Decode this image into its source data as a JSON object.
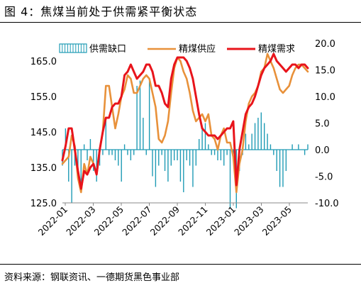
{
  "title": "图 4：焦煤当前处于供需紧平衡状态",
  "source": "资料来源：钢联资讯、一德期货黑色事业部",
  "chart_data": {
    "type": "line+bar",
    "x_labels": [
      "2022-01",
      "2022-03",
      "2022-05",
      "2022-07",
      "2022-09",
      "2022-11",
      "2023-01",
      "2023-03",
      "2023-05"
    ],
    "y_left": {
      "min": 125,
      "max": 170,
      "ticks": [
        125.0,
        135.0,
        145.0,
        155.0,
        165.0
      ]
    },
    "y_right": {
      "min": -10,
      "max": 20,
      "ticks": [
        -10.0,
        -5.0,
        0.0,
        5.0,
        10.0,
        15.0,
        20.0
      ]
    },
    "legend_position": "top",
    "n_points": 80,
    "series": [
      {
        "name": "供需缺口",
        "type": "bar",
        "axis": "right",
        "color": "#1f9bb5",
        "values": [
          -3,
          4,
          -6,
          -10,
          -3,
          -5,
          -8,
          1,
          -2,
          2,
          -4,
          -6,
          -3,
          -1,
          6,
          -1,
          -1,
          -2,
          -3,
          -6,
          1,
          -1,
          -2,
          -1,
          12,
          13,
          6,
          -1,
          13,
          -5,
          -7,
          -3,
          -1,
          -4,
          -6,
          -3,
          -2,
          -2,
          -6,
          -8,
          -2,
          -3,
          -7,
          -3,
          2,
          4,
          5,
          1,
          -1,
          -1,
          -2,
          -2,
          -3,
          -1,
          -11,
          -1,
          -11,
          -4,
          -1,
          3,
          1,
          3,
          5,
          6,
          7,
          5,
          3,
          1,
          -1,
          -4,
          -7,
          -7,
          -4,
          0,
          1,
          0,
          1,
          0,
          -1,
          1
        ]
      },
      {
        "name": "精煤供应",
        "type": "line",
        "axis": "left",
        "color": "#e8913a",
        "values": [
          136,
          137,
          138,
          144,
          141,
          132,
          128,
          136,
          133,
          138,
          136,
          133,
          140,
          145,
          158,
          158,
          152,
          146,
          150,
          155,
          157,
          161,
          160,
          156,
          156,
          158,
          160,
          161,
          160,
          156,
          152,
          143,
          142,
          144,
          148,
          156,
          163,
          166,
          165,
          162,
          160,
          156,
          151,
          148,
          149,
          150,
          148,
          150,
          144,
          143,
          140,
          144,
          146,
          142,
          142,
          138,
          128,
          136,
          140,
          148,
          153,
          155,
          156,
          158,
          162,
          163,
          167,
          165,
          163,
          160,
          157,
          156,
          157,
          158,
          161,
          163,
          164,
          164,
          163,
          162
        ]
      },
      {
        "name": "精煤需求",
        "type": "line",
        "axis": "left",
        "color": "#e8141b",
        "values": [
          137,
          141,
          146,
          146,
          140,
          134,
          129,
          134,
          133,
          135,
          136,
          133,
          140,
          145,
          149,
          149,
          152,
          153,
          153,
          155,
          161,
          162,
          164,
          162,
          160,
          161,
          162,
          164,
          164,
          162,
          158,
          158,
          156,
          153,
          152,
          160,
          164,
          166,
          166,
          166,
          165,
          163,
          160,
          155,
          150,
          146,
          145,
          144,
          144,
          144,
          143,
          144,
          145,
          146,
          146,
          148,
          130,
          140,
          145,
          150,
          152,
          153,
          155,
          158,
          161,
          163,
          164,
          165,
          167,
          165,
          164,
          163,
          162,
          163,
          164,
          164,
          163,
          164,
          164,
          163
        ]
      }
    ]
  }
}
